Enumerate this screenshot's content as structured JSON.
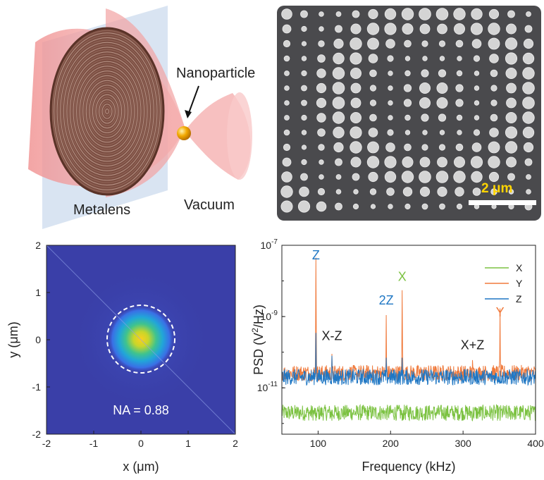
{
  "schematic": {
    "nanoparticle_label": "Nanoparticle",
    "metalens_label": "Metalens",
    "vacuum_label": "Vacuum",
    "colors": {
      "beam": "#f4a5a5",
      "lens": "#8a5a4a",
      "particle": "#f2a900",
      "plate": "#c9d9ec"
    }
  },
  "sem": {
    "scale_bar_label": "2 μm",
    "colors": {
      "background": "#4a4a4d",
      "pillar": "#d4d4d4",
      "scale_text": "#ffd400"
    }
  },
  "focus_map": {
    "annotation": "NA = 0.88",
    "xlabel": "x (μm)",
    "ylabel": "y (μm)",
    "xticks": [
      "-2",
      "-1",
      "0",
      "1",
      "2"
    ],
    "yticks": [
      "2",
      "1",
      "0",
      "-1",
      "-2"
    ],
    "colors": {
      "background": "#3a3fa8",
      "peak": "#fbcf1f"
    }
  },
  "chart_data": {
    "type": "line",
    "xlabel": "Frequency (kHz)",
    "ylabel": "PSD (V²/Hz)",
    "xlim": [
      50,
      400
    ],
    "ylim": [
      5e-13,
      1e-07
    ],
    "yscale": "log",
    "xticks": [
      "100",
      "200",
      "300",
      "400"
    ],
    "yticks": [
      "10-7",
      "10-9",
      "10-11"
    ],
    "legend_position": "top-right",
    "series": [
      {
        "name": "X",
        "color": "#7cc242",
        "noise_floor": 2e-12,
        "peaks": [
          [
            97,
            1.2e-12
          ],
          [
            119,
            1.2e-12
          ],
          [
            216,
            1.2e-12
          ],
          [
            313,
            1.2e-12
          ],
          [
            351,
            1.2e-12
          ]
        ]
      },
      {
        "name": "Y",
        "color": "#f07a3c",
        "noise_floor": 2.6e-11,
        "peaks": [
          [
            97,
            4.5e-08
          ],
          [
            119,
            9e-11
          ],
          [
            194,
            1.1e-09
          ],
          [
            216,
            5.5e-09
          ],
          [
            313,
            6e-11
          ],
          [
            351,
            1.7e-09
          ]
        ]
      },
      {
        "name": "Z",
        "color": "#1f77c4",
        "noise_floor": 2e-11,
        "peaks": [
          [
            97,
            3.5e-10
          ],
          [
            119,
            8e-11
          ],
          [
            194,
            7e-11
          ],
          [
            216,
            7e-11
          ]
        ]
      }
    ],
    "annotations": [
      {
        "text": "Z",
        "color": "#1f77c4",
        "x": 97,
        "y": 4e-08
      },
      {
        "text": "X-Z",
        "color": "#222222",
        "x": 119,
        "y": 2.2e-10
      },
      {
        "text": "2Z",
        "color": "#1f77c4",
        "x": 194,
        "y": 2.2e-09
      },
      {
        "text": "X",
        "color": "#7cc242",
        "x": 216,
        "y": 1e-08
      },
      {
        "text": "X+Z",
        "color": "#222222",
        "x": 313,
        "y": 1.2e-10
      },
      {
        "text": "Y",
        "color": "#f07a3c",
        "x": 351,
        "y": 1e-09
      }
    ]
  }
}
